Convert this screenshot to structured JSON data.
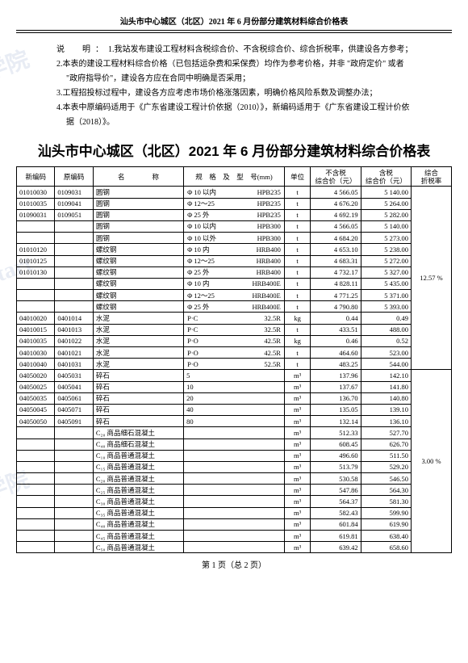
{
  "header": "汕头市中心城区（北区）2021 年 6 月份部分建筑材料综合价格表",
  "notes_label": "说　明：",
  "notes": [
    "1.我站发布建设工程材料含税综合价、不含税综合价、综合折税率，供建设各方参考；",
    "2.本表的建设工程材料综合价格（已包括运杂费和采保费）均作为参考价格，并非 \"政府定价\" 或者",
    "\"政府指导价\"，建设各方应在合同中明确是否采用；",
    "3.工程招投标过程中，建设各方应考虑市场价格涨落因素，明确价格风险系数及调整办法；",
    "4.本表中原编码适用于《广东省建设工程计价依据（2010）》，新编码适用于《广东省建设工程计价依",
    "据（2018）》。"
  ],
  "title": "汕头市中心城区（北区）2021 年 6 月份部分建筑材料综合价格表",
  "columns": [
    "新编码",
    "原编码",
    "名　　　　称",
    "规　格　及　型　号(mm)",
    "单位",
    "不含税\n综合价（元）",
    "含税\n综合价（元）",
    "综合\n折税率"
  ],
  "rate1": "12.57 %",
  "rate2": "3.00 %",
  "rows1": [
    [
      "01010030",
      "0109031",
      "圆钢",
      "Φ 10 以内",
      "HPB235",
      "t",
      "4 566.05",
      "5 140.00"
    ],
    [
      "01010035",
      "0109041",
      "圆钢",
      "Φ 12～25",
      "HPB235",
      "t",
      "4 676.20",
      "5 264.00"
    ],
    [
      "01090031",
      "0109051",
      "圆钢",
      "Φ 25 外",
      "HPB235",
      "t",
      "4 692.19",
      "5 282.00"
    ],
    [
      "",
      "",
      "圆钢",
      "Φ 10 以内",
      "HPB300",
      "t",
      "4 566.05",
      "5 140.00"
    ],
    [
      "",
      "",
      "圆钢",
      "Φ 10 以外",
      "HPB300",
      "t",
      "4 684.20",
      "5 273.00"
    ],
    [
      "01010120",
      "",
      "螺纹钢",
      "Φ 10 内",
      "HRB400",
      "t",
      "4 653.10",
      "5 238.00"
    ],
    [
      "01010125",
      "",
      "螺纹钢",
      "Φ 12～25",
      "HRB400",
      "t",
      "4 683.31",
      "5 272.00"
    ],
    [
      "01010130",
      "",
      "螺纹钢",
      "Φ 25 外",
      "HRB400",
      "t",
      "4 732.17",
      "5 327.00"
    ],
    [
      "",
      "",
      "螺纹钢",
      "Φ 10 内",
      "HRB400E",
      "t",
      "4 828.11",
      "5 435.00"
    ],
    [
      "",
      "",
      "螺纹钢",
      "Φ 12～25",
      "HRB400E",
      "t",
      "4 771.25",
      "5 371.00"
    ],
    [
      "",
      "",
      "螺纹钢",
      "Φ 25 外",
      "HRB400E",
      "t",
      "4 790.80",
      "5 393.00"
    ],
    [
      "04010020",
      "0401014",
      "水泥",
      "P·C",
      "32.5R",
      "kg",
      "0.44",
      "0.49"
    ],
    [
      "04010015",
      "0401013",
      "水泥",
      "P·C",
      "32.5R",
      "t",
      "433.51",
      "488.00"
    ],
    [
      "04010035",
      "0401022",
      "水泥",
      "P·O",
      "42.5R",
      "kg",
      "0.46",
      "0.52"
    ],
    [
      "04010030",
      "0401021",
      "水泥",
      "P·O",
      "42.5R",
      "t",
      "464.60",
      "523.00"
    ],
    [
      "04010040",
      "0401031",
      "水泥",
      "P·O",
      "52.5R",
      "t",
      "483.25",
      "544.00"
    ]
  ],
  "rows2": [
    [
      "04050020",
      "0405031",
      "碎石",
      "5",
      "",
      "m³",
      "137.96",
      "142.10"
    ],
    [
      "04050025",
      "0405041",
      "碎石",
      "10",
      "",
      "m³",
      "137.67",
      "141.80"
    ],
    [
      "04050035",
      "0405061",
      "碎石",
      "20",
      "",
      "m³",
      "136.70",
      "140.80"
    ],
    [
      "04050045",
      "0405071",
      "碎石",
      "40",
      "",
      "m³",
      "135.05",
      "139.10"
    ],
    [
      "04050050",
      "0405091",
      "碎石",
      "80",
      "",
      "m³",
      "132.14",
      "136.10"
    ],
    [
      "",
      "",
      "C₂₀ 商品细石混凝土",
      "",
      "",
      "m³",
      "512.33",
      "527.70"
    ],
    [
      "",
      "",
      "C₄₀ 商品细石混凝土",
      "",
      "",
      "m³",
      "608.45",
      "626.70"
    ],
    [
      "",
      "",
      "C₁₀ 商品普通混凝土",
      "",
      "",
      "m³",
      "496.60",
      "511.50"
    ],
    [
      "",
      "",
      "C₁₅ 商品普通混凝土",
      "",
      "",
      "m³",
      "513.79",
      "529.20"
    ],
    [
      "",
      "",
      "C₂₀ 商品普通混凝土",
      "",
      "",
      "m³",
      "530.58",
      "546.50"
    ],
    [
      "",
      "",
      "C₂₅ 商品普通混凝土",
      "",
      "",
      "m³",
      "547.86",
      "564.30"
    ],
    [
      "",
      "",
      "C₃₀ 商品普通混凝土",
      "",
      "",
      "m³",
      "564.37",
      "581.30"
    ],
    [
      "",
      "",
      "C₃₅ 商品普通混凝土",
      "",
      "",
      "m³",
      "582.43",
      "599.90"
    ],
    [
      "",
      "",
      "C₄₀ 商品普通混凝土",
      "",
      "",
      "m³",
      "601.84",
      "619.90"
    ],
    [
      "",
      "",
      "C₄₅ 商品普通混凝土",
      "",
      "",
      "m³",
      "619.81",
      "638.40"
    ],
    [
      "",
      "",
      "C₅₀ 商品普通混凝土",
      "",
      "",
      "m³",
      "639.42",
      "658.60"
    ]
  ],
  "footer": "第 1 页（总 2 页）"
}
